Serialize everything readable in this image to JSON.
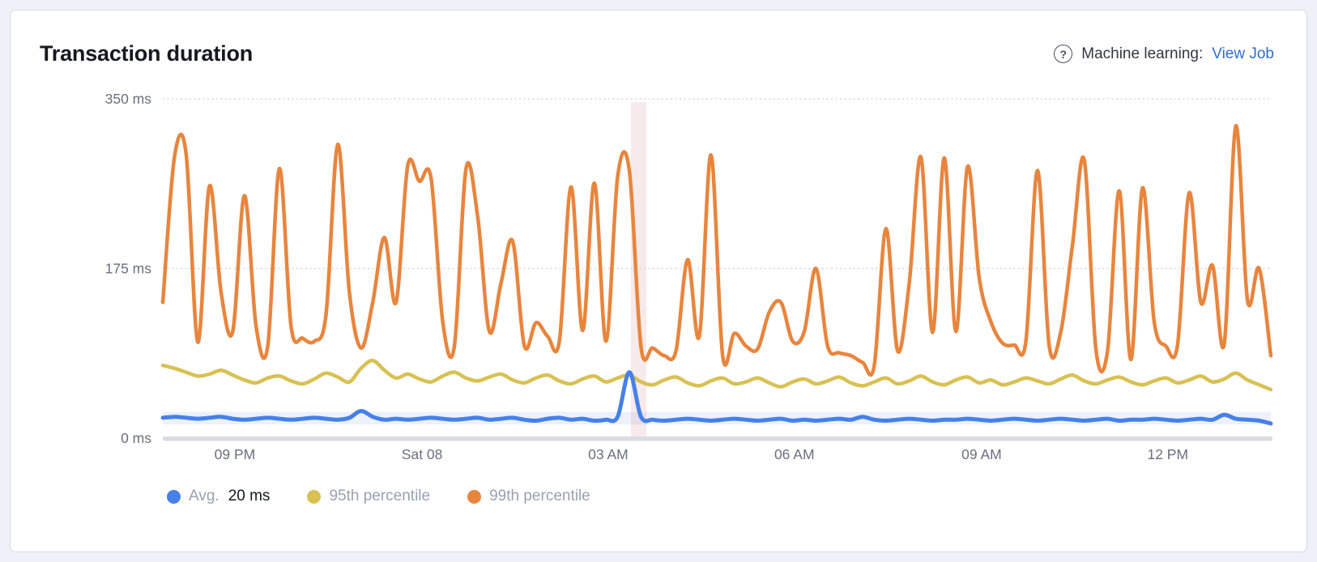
{
  "card": {
    "title": "Transaction duration"
  },
  "header_right": {
    "help_glyph": "?",
    "label": "Machine learning:",
    "link": "View Job"
  },
  "legend": {
    "items": [
      {
        "label": "Avg.",
        "value": "20 ms",
        "color": "#4680e8"
      },
      {
        "label": "95th percentile",
        "value": "",
        "color": "#d8c153"
      },
      {
        "label": "99th percentile",
        "value": "",
        "color": "#e8853d"
      }
    ]
  },
  "chart_data": {
    "type": "line",
    "title": "Transaction duration",
    "y_unit": "ms",
    "ylim": [
      0,
      350
    ],
    "grid": "dotted-horizontal",
    "legend_position": "bottom",
    "yticks": [
      {
        "label": "350 ms",
        "value": 350
      },
      {
        "label": "175 ms",
        "value": 175
      },
      {
        "label": "0 ms",
        "value": 0
      }
    ],
    "xticks": [
      {
        "label": "09 PM",
        "f": 0.065
      },
      {
        "label": "Sat 08",
        "f": 0.234
      },
      {
        "label": "03 AM",
        "f": 0.402
      },
      {
        "label": "06 AM",
        "f": 0.57
      },
      {
        "label": "09 AM",
        "f": 0.739
      },
      {
        "label": "12 PM",
        "f": 0.907
      }
    ],
    "annotation_band": {
      "x_start_frac": 0.4225,
      "x_end_frac": 0.4364,
      "color": "rgba(193,92,92,0.13)"
    },
    "ml_bounds": {
      "lower": 14,
      "upper": 27,
      "color": "rgba(70,120,230,0.10)"
    },
    "series": [
      {
        "name": "99th percentile",
        "color": "#e8853d",
        "stroke_width": 4.5,
        "values": [
          140,
          290,
          293,
          99,
          260,
          150,
          110,
          250,
          115,
          95,
          278,
          115,
          103,
          100,
          128,
          303,
          150,
          93,
          140,
          207,
          140,
          281,
          265,
          268,
          120,
          95,
          278,
          228,
          110,
          160,
          203,
          95,
          119,
          105,
          100,
          259,
          111,
          263,
          100,
          270,
          276,
          94,
          93,
          85,
          90,
          184,
          105,
          292,
          85,
          108,
          95,
          92,
          130,
          140,
          100,
          110,
          175,
          95,
          88,
          85,
          78,
          75,
          216,
          90,
          160,
          290,
          109,
          289,
          110,
          280,
          165,
          120,
          98,
          96,
          100,
          276,
          95,
          110,
          200,
          287,
          92,
          90,
          255,
          81,
          258,
          120,
          95,
          96,
          253,
          140,
          178,
          97,
          322,
          142,
          175,
          85
        ]
      },
      {
        "name": "95th percentile",
        "color": "#d8c153",
        "stroke_width": 4.5,
        "values": [
          75,
          72,
          68,
          64,
          66,
          70,
          65,
          60,
          57,
          62,
          64,
          59,
          56,
          61,
          67,
          63,
          58,
          72,
          80,
          70,
          62,
          66,
          61,
          58,
          64,
          68,
          62,
          59,
          63,
          66,
          60,
          57,
          62,
          65,
          59,
          56,
          61,
          64,
          58,
          62,
          65,
          58,
          55,
          60,
          63,
          57,
          54,
          59,
          62,
          56,
          58,
          62,
          57,
          53,
          58,
          61,
          56,
          59,
          63,
          57,
          54,
          58,
          62,
          56,
          59,
          64,
          58,
          55,
          60,
          63,
          57,
          60,
          55,
          58,
          62,
          59,
          56,
          61,
          65,
          59,
          56,
          60,
          63,
          58,
          55,
          59,
          62,
          57,
          60,
          64,
          58,
          61,
          67,
          60,
          55,
          50
        ]
      },
      {
        "name": "Avg.",
        "color": "#4680e8",
        "stroke_width": 5,
        "values": [
          21,
          22,
          21,
          20,
          21,
          22,
          20,
          19,
          20,
          21,
          20,
          19,
          20,
          21,
          20,
          19,
          21,
          28,
          22,
          19,
          20,
          19,
          20,
          21,
          20,
          19,
          20,
          21,
          19,
          20,
          21,
          19,
          18,
          20,
          21,
          19,
          20,
          18,
          19,
          22,
          68,
          22,
          19,
          18,
          19,
          20,
          19,
          18,
          19,
          20,
          19,
          18,
          19,
          20,
          18,
          19,
          18,
          19,
          20,
          19,
          22,
          19,
          18,
          19,
          20,
          19,
          18,
          19,
          19,
          20,
          19,
          18,
          19,
          20,
          19,
          18,
          19,
          20,
          19,
          18,
          19,
          20,
          18,
          19,
          19,
          20,
          19,
          18,
          19,
          20,
          19,
          24,
          20,
          19,
          18,
          15
        ]
      }
    ]
  }
}
